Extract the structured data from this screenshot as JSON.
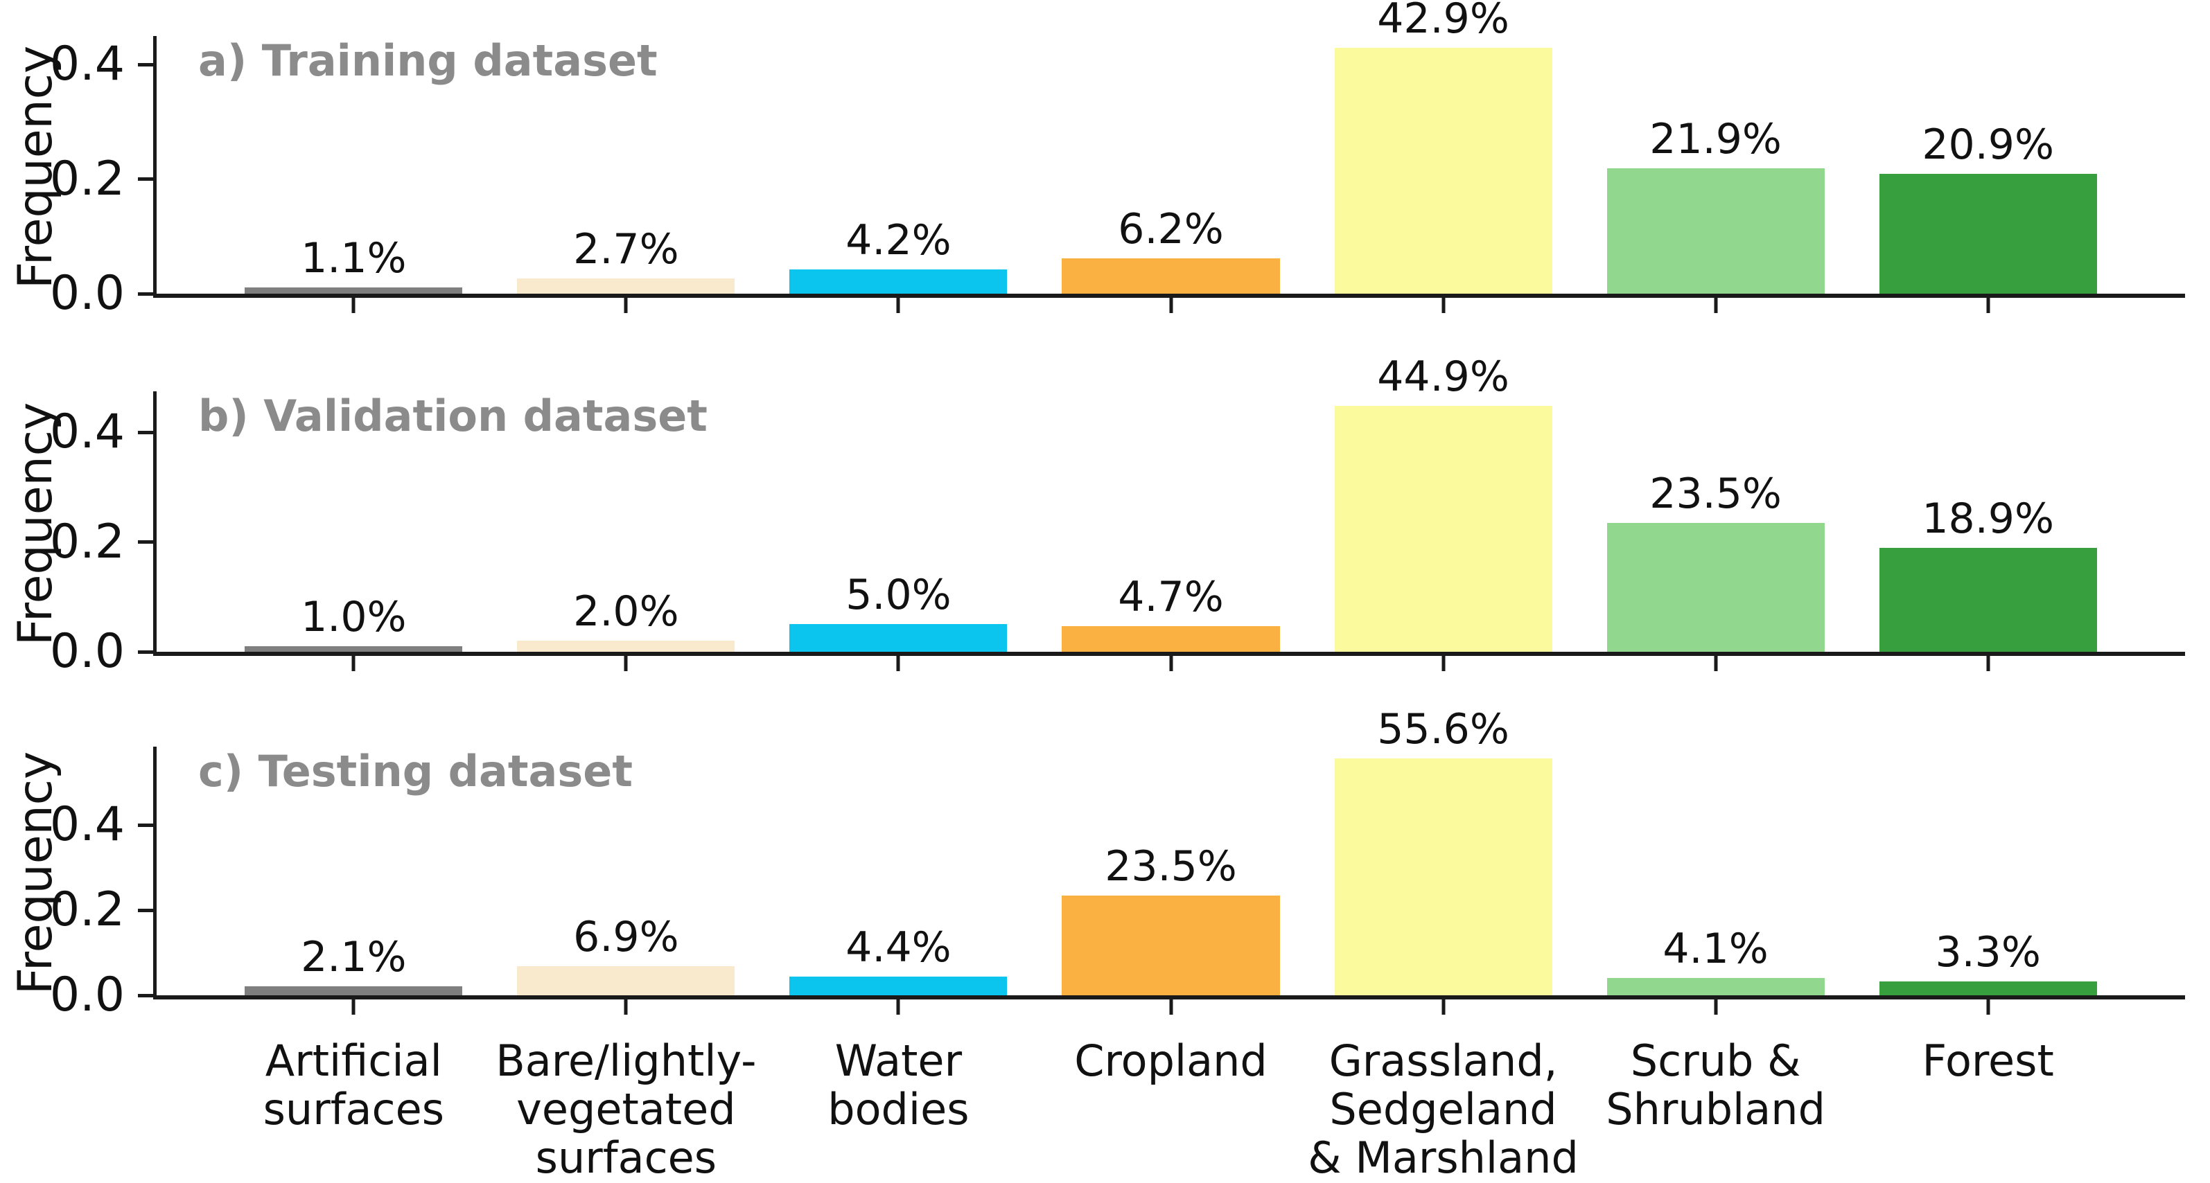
{
  "figure": {
    "background": "#ffffff",
    "axis_color": "#1a1a1a",
    "title_color": "#8b8b8b",
    "text_color": "#111111"
  },
  "chart_data": {
    "type": "bar",
    "ylabel": "Frequency",
    "ytick_labels": [
      "0.0",
      "0.2",
      "0.4"
    ],
    "ytick_values": [
      0.0,
      0.2,
      0.4
    ],
    "grid": false,
    "legend": "none",
    "categories": [
      "Artificial\nsurfaces",
      "Bare/lightly-\nvegetated\nsurfaces",
      "Water\nbodies",
      "Cropland",
      "Grassland,\nSedgeland\n& Marshland",
      "Scrub &\nShrubland",
      "Forest"
    ],
    "category_slugs": [
      "artificial-surfaces",
      "bare-lightly-vegetated-surfaces",
      "water-bodies",
      "cropland",
      "grassland-sedgeland-marshland",
      "scrub-shrubland",
      "forest"
    ],
    "bar_colors": [
      "#7f7f7f",
      "#faeacd",
      "#0bc5ef",
      "#fbb042",
      "#fbfa9d",
      "#92d78e",
      "#379f3d"
    ],
    "panels": [
      {
        "panel_label": "a) Training dataset",
        "values_percent": [
          1.1,
          2.7,
          4.2,
          6.2,
          42.9,
          21.9,
          20.9
        ],
        "bar_labels": [
          "1.1%",
          "2.7%",
          "4.2%",
          "6.2%",
          "42.9%",
          "21.9%",
          "20.9%"
        ],
        "ylim": [
          0,
          0.45
        ]
      },
      {
        "panel_label": "b) Validation dataset",
        "values_percent": [
          1.0,
          2.0,
          5.0,
          4.7,
          44.9,
          23.5,
          18.9
        ],
        "bar_labels": [
          "1.0%",
          "2.0%",
          "5.0%",
          "4.7%",
          "44.9%",
          "23.5%",
          "18.9%"
        ],
        "ylim": [
          0,
          0.475
        ]
      },
      {
        "panel_label": "c) Testing dataset",
        "values_percent": [
          2.1,
          6.9,
          4.4,
          23.5,
          55.6,
          4.1,
          3.3
        ],
        "bar_labels": [
          "2.1%",
          "6.9%",
          "4.4%",
          "23.5%",
          "55.6%",
          "4.1%",
          "3.3%"
        ],
        "ylim": [
          0,
          0.584
        ]
      }
    ]
  }
}
